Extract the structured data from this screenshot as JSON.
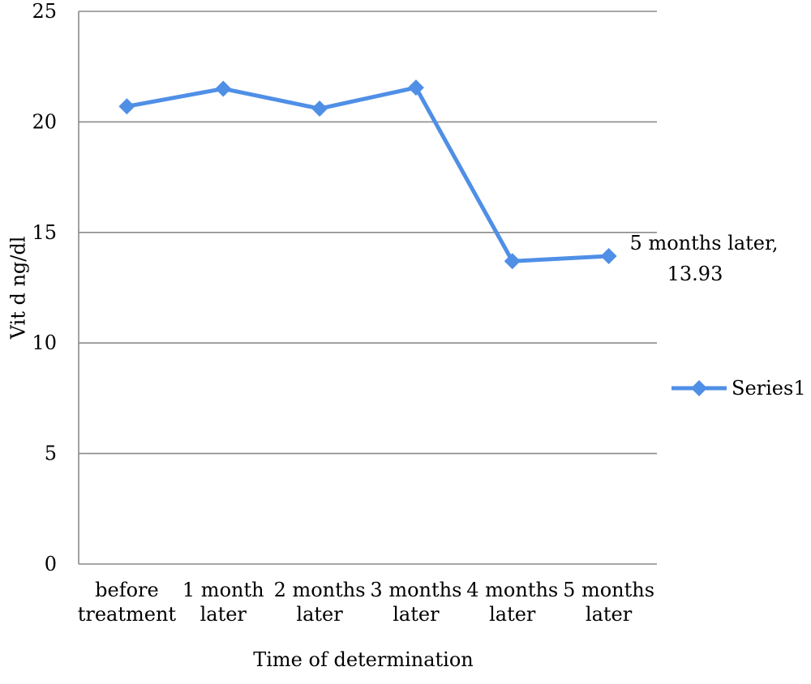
{
  "chart_data": {
    "type": "line",
    "title": "",
    "xlabel": "Time of determination",
    "ylabel": "Vit d  ng/dl",
    "ylim": [
      0,
      25
    ],
    "yticks": [
      0,
      5,
      10,
      15,
      20,
      25
    ],
    "grid": true,
    "legend_position": "right",
    "categories": [
      [
        "before",
        "treatment"
      ],
      [
        "1 month",
        "later"
      ],
      [
        "2 months",
        "later"
      ],
      [
        "3 months",
        "later"
      ],
      [
        "4 months",
        "later"
      ],
      [
        "5 months",
        "later"
      ]
    ],
    "series": [
      {
        "name": "Series1",
        "color": "#4f8fe6",
        "marker": "diamond",
        "values": [
          20.7,
          21.5,
          20.6,
          21.55,
          13.7,
          13.93
        ]
      }
    ],
    "annotations": [
      {
        "point_index": 5,
        "lines": [
          "5 months later,",
          "13.93"
        ]
      }
    ]
  }
}
